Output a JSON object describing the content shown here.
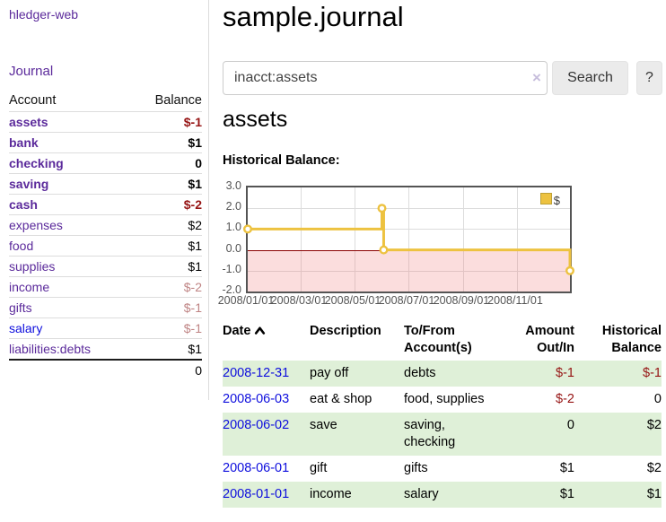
{
  "sidebar": {
    "app_title": "hledger-web",
    "journal_label": "Journal",
    "accounts": {
      "headers": {
        "account": "Account",
        "balance": "Balance"
      },
      "rows": [
        {
          "name": "assets",
          "balance": "$-1"
        },
        {
          "name": "bank",
          "balance": "$1"
        },
        {
          "name": "checking",
          "balance": "0"
        },
        {
          "name": "saving",
          "balance": "$1"
        },
        {
          "name": "cash",
          "balance": "$-2"
        },
        {
          "name": "expenses",
          "balance": "$2"
        },
        {
          "name": "food",
          "balance": "$1"
        },
        {
          "name": "supplies",
          "balance": "$1"
        },
        {
          "name": "income",
          "balance": "$-2"
        },
        {
          "name": "gifts",
          "balance": "$-1"
        },
        {
          "name": "salary",
          "balance": "$-1"
        },
        {
          "name": "liabilities:debts",
          "balance": "$1"
        }
      ],
      "total": "0"
    }
  },
  "main": {
    "title": "sample.journal",
    "search": {
      "value": "inacct:assets",
      "clear_icon": "×",
      "button_label": "Search",
      "help_label": "?"
    },
    "account_heading": "assets",
    "section_label": "Historical Balance:"
  },
  "chart_data": {
    "type": "line",
    "subtype": "step-after",
    "title": "Historical Balance",
    "legend_position": "top-right",
    "grid": true,
    "ylim": [
      -2,
      3
    ],
    "xlim_days": [
      0,
      365
    ],
    "y_ticks": [
      {
        "v": 3,
        "label": "3.0"
      },
      {
        "v": 2,
        "label": "2.0"
      },
      {
        "v": 1,
        "label": "1.0"
      },
      {
        "v": 0,
        "label": "0.0"
      },
      {
        "v": -1,
        "label": "-1.0"
      },
      {
        "v": -2,
        "label": "-2.0"
      }
    ],
    "x_ticks": [
      {
        "day": 0,
        "label": "2008/01/01"
      },
      {
        "day": 60,
        "label": "2008/03/01"
      },
      {
        "day": 121,
        "label": "2008/05/01"
      },
      {
        "day": 182,
        "label": "2008/07/01"
      },
      {
        "day": 244,
        "label": "2008/09/01"
      },
      {
        "day": 305,
        "label": "2008/11/01"
      }
    ],
    "series": [
      {
        "name": "$",
        "color": "#edc240",
        "points": [
          {
            "date": "2008-01-01",
            "day": 0,
            "value": 1
          },
          {
            "date": "2008-06-01",
            "day": 152,
            "value": 2
          },
          {
            "date": "2008-06-03",
            "day": 154,
            "value": 0
          },
          {
            "date": "2008-12-31",
            "day": 365,
            "value": -1
          }
        ]
      }
    ],
    "zero_line_color": "#8b0000",
    "negative_region_fill": "#fadada"
  },
  "register": {
    "headers": {
      "date": "Date",
      "description": "Description",
      "accounts": "To/From Account(s)",
      "amount": "Amount Out/In",
      "balance": "Historical Balance"
    },
    "rows": [
      {
        "date": "2008-12-31",
        "description": "pay off",
        "accounts": "debts",
        "amount": "$-1",
        "balance": "$-1"
      },
      {
        "date": "2008-06-03",
        "description": "eat & shop",
        "accounts": "food, supplies",
        "amount": "$-2",
        "balance": "0"
      },
      {
        "date": "2008-06-02",
        "description": "save",
        "accounts": "saving, checking",
        "amount": "0",
        "balance": "$2"
      },
      {
        "date": "2008-06-01",
        "description": "gift",
        "accounts": "gifts",
        "amount": "$1",
        "balance": "$2"
      },
      {
        "date": "2008-01-01",
        "description": "income",
        "accounts": "salary",
        "amount": "$1",
        "balance": "$1"
      }
    ]
  },
  "colors": {
    "link_purple": "#5b2a9b",
    "link_blue": "#0e0edd",
    "negative_red": "#961414",
    "negative_dim_red": "#bf8484",
    "row_green": "#dff0d8",
    "chart_gold": "#edc240"
  }
}
